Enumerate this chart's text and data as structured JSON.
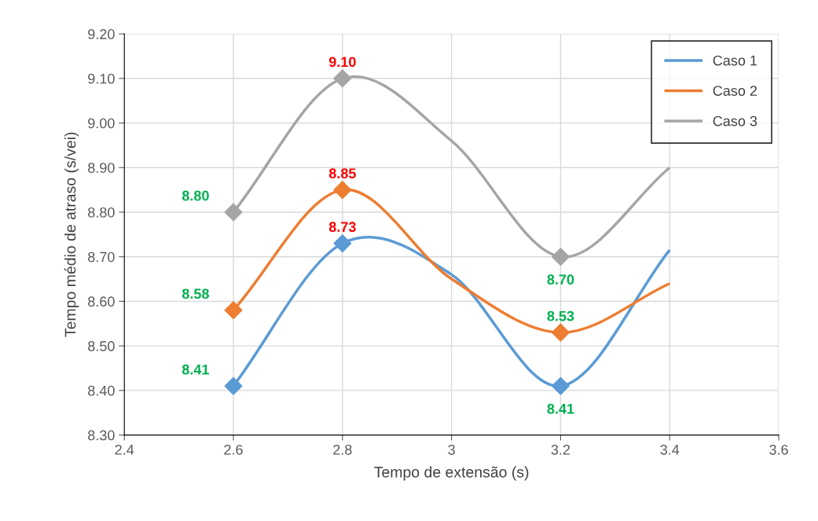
{
  "chart_data": {
    "type": "line",
    "xlabel": "Tempo de extensão (s)",
    "ylabel": "Tempo médio de atraso (s/vei)",
    "x": [
      2.6,
      2.8,
      3.0,
      3.2,
      3.4
    ],
    "series": [
      {
        "name": "Caso 1",
        "color": "#5b9bd5",
        "values": [
          8.41,
          8.73,
          8.66,
          8.41,
          8.715
        ],
        "value_labels": [
          "8.41",
          "8.73",
          null,
          "8.41",
          null
        ]
      },
      {
        "name": "Caso 2",
        "color": "#ed7d31",
        "values": [
          8.58,
          8.85,
          8.65,
          8.53,
          8.64
        ],
        "value_labels": [
          "8.58",
          "8.85",
          null,
          "8.53",
          null
        ]
      },
      {
        "name": "Caso 3",
        "color": "#a5a5a5",
        "values": [
          8.8,
          9.1,
          8.96,
          8.7,
          8.9
        ],
        "value_labels": [
          "8.80",
          "9.10",
          null,
          "8.70",
          null
        ]
      }
    ],
    "xlim": [
      2.4,
      3.6
    ],
    "xticks": [
      2.4,
      2.6,
      2.8,
      3,
      3.2,
      3.4,
      3.6
    ],
    "ylim": [
      8.3,
      9.2
    ],
    "yticks": [
      {
        "value": 8.3,
        "label": "8.30"
      },
      {
        "value": 8.4,
        "label": "8.40"
      },
      {
        "value": 8.5,
        "label": "8.50"
      },
      {
        "value": 8.6,
        "label": "8.60"
      },
      {
        "value": 8.7,
        "label": "8.70"
      },
      {
        "value": 8.8,
        "label": "8.80"
      },
      {
        "value": 8.9,
        "label": "8.90"
      },
      {
        "value": 9.0,
        "label": "9.00"
      },
      {
        "value": 9.1,
        "label": "9.10"
      },
      {
        "value": 9.2,
        "label": "9.20"
      }
    ],
    "grid": true,
    "legend": "top right",
    "marker": "diamond",
    "line_style": "solid"
  }
}
